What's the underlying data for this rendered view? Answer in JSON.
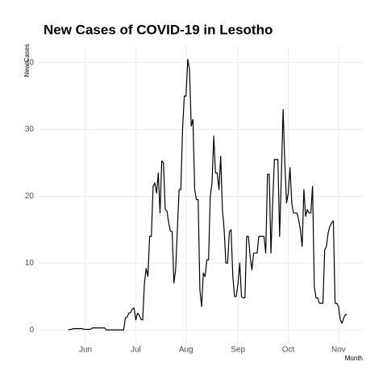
{
  "chart_data": {
    "type": "line",
    "title": "New Cases of COVID-19 in Lesotho",
    "y_label": "New Cases",
    "x_label": "Month",
    "color": "#000000",
    "grid": true,
    "values": [
      0,
      0.1,
      0.1,
      0.2,
      0.2,
      0.2,
      0.2,
      0.2,
      0.2,
      0.1,
      0.1,
      0.1,
      0.1,
      0.1,
      0.3,
      0.3,
      0.3,
      0.3,
      0.3,
      0.3,
      0.3,
      0.3,
      0,
      0,
      0,
      0,
      0,
      0,
      0,
      0,
      0,
      0,
      0,
      1.8,
      1.9,
      2.5,
      2.6,
      3.1,
      3.3,
      1.5,
      2.5,
      2.2,
      1.6,
      1.5,
      7,
      9.2,
      8,
      14,
      14,
      21.5,
      22,
      20.5,
      23.5,
      17.5,
      25.3,
      25,
      18,
      17.8,
      16,
      14.8,
      14.7,
      7,
      9,
      15,
      21,
      21,
      30,
      35,
      35,
      40.5,
      39,
      30.5,
      31.5,
      21,
      19.5,
      19.5,
      6,
      3.5,
      8.5,
      8,
      10.5,
      10.5,
      20,
      22,
      29,
      23.5,
      23.5,
      21,
      26,
      18,
      15,
      10,
      10,
      14.7,
      15,
      8,
      5,
      5,
      7,
      10,
      5,
      4.8,
      4.8,
      14,
      14,
      11,
      9,
      11.5,
      11.5,
      11.5,
      14,
      14,
      14,
      14,
      11.5,
      23.3,
      23.3,
      11.5,
      19,
      25.5,
      25.5,
      25.5,
      14,
      23,
      33,
      25,
      19,
      20.5,
      24.3,
      19,
      17.5,
      17.5,
      17.5,
      16.5,
      15,
      12.5,
      21,
      17,
      18,
      17.5,
      17.5,
      21.5,
      6.5,
      4.8,
      4.8,
      4,
      4,
      4,
      12,
      12.5,
      14.5,
      15.5,
      16,
      16.3,
      4,
      4,
      3.5,
      1.5,
      1,
      1.8,
      2.3,
      2.3
    ],
    "xlim": [
      -17,
      170
    ],
    "xticks": [
      {
        "value": 10,
        "label": "Jun"
      },
      {
        "value": 39,
        "label": "Jul"
      },
      {
        "value": 68,
        "label": "Aug"
      },
      {
        "value": 98,
        "label": "Sep"
      },
      {
        "value": 127,
        "label": "Oct"
      },
      {
        "value": 156,
        "label": "Nov"
      }
    ],
    "ylim": [
      -1.9,
      42.5
    ],
    "yticks": [
      0,
      10,
      20,
      30,
      40
    ]
  }
}
